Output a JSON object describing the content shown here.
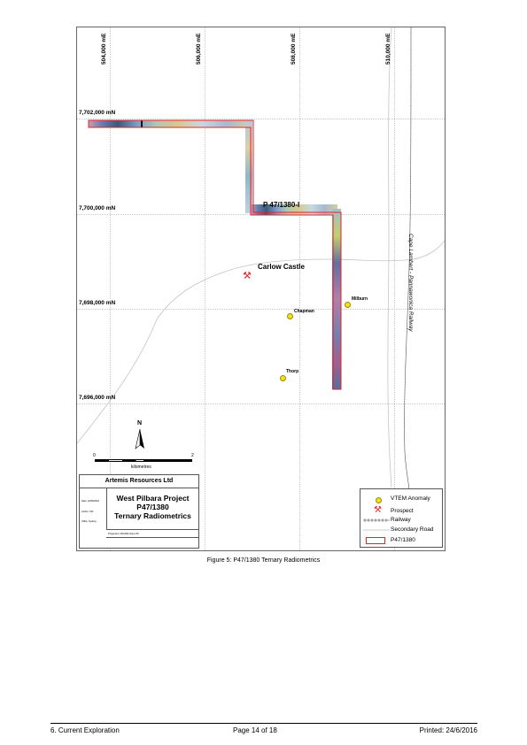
{
  "map": {
    "easting_labels": [
      "504,000 mE",
      "506,000 mE",
      "508,000 mE",
      "510,000 mE"
    ],
    "northing_labels": [
      "7,702,000 mN",
      "7,700,000 mN",
      "7,698,000 mN",
      "7,696,000 mN"
    ],
    "tenement_label": "P 47/1380-I",
    "place_label": "Carlow Castle",
    "railway_label": "Cape Lambert - Pannawonica Railway",
    "anomalies": [
      {
        "name": "Chapman"
      },
      {
        "name": "Milburn"
      },
      {
        "name": "Thorp"
      }
    ],
    "scalebar": {
      "start": "0",
      "end": "2",
      "unit": "kilometres"
    },
    "north_arrow": "N",
    "colors": {
      "tenement": "#e8202a",
      "anomaly": "#f5e21c",
      "prospect": "#e8202a",
      "road": "#bdbdbd"
    }
  },
  "title_block": {
    "company": "Artemis Resources Ltd",
    "title_lines": [
      "West Pilbara Project",
      "P47/1380",
      "Ternary Radiometrics"
    ],
    "date": "Date: 22/06/2016",
    "author": "Author: KW",
    "office": "Office: Sydney",
    "projection": "Projection: MGA94 Zone 50"
  },
  "legend": {
    "items": [
      "VTEM Anomaly",
      "Prospect",
      "Railway",
      "Secondary Road",
      "P47/1380"
    ]
  },
  "caption": "Figure 5: P47/1380 Ternary Radiometrics",
  "footer": {
    "left": "6. Current Exploration",
    "center": "Page 14 of 18",
    "right": "Printed: 24/6/2016"
  }
}
